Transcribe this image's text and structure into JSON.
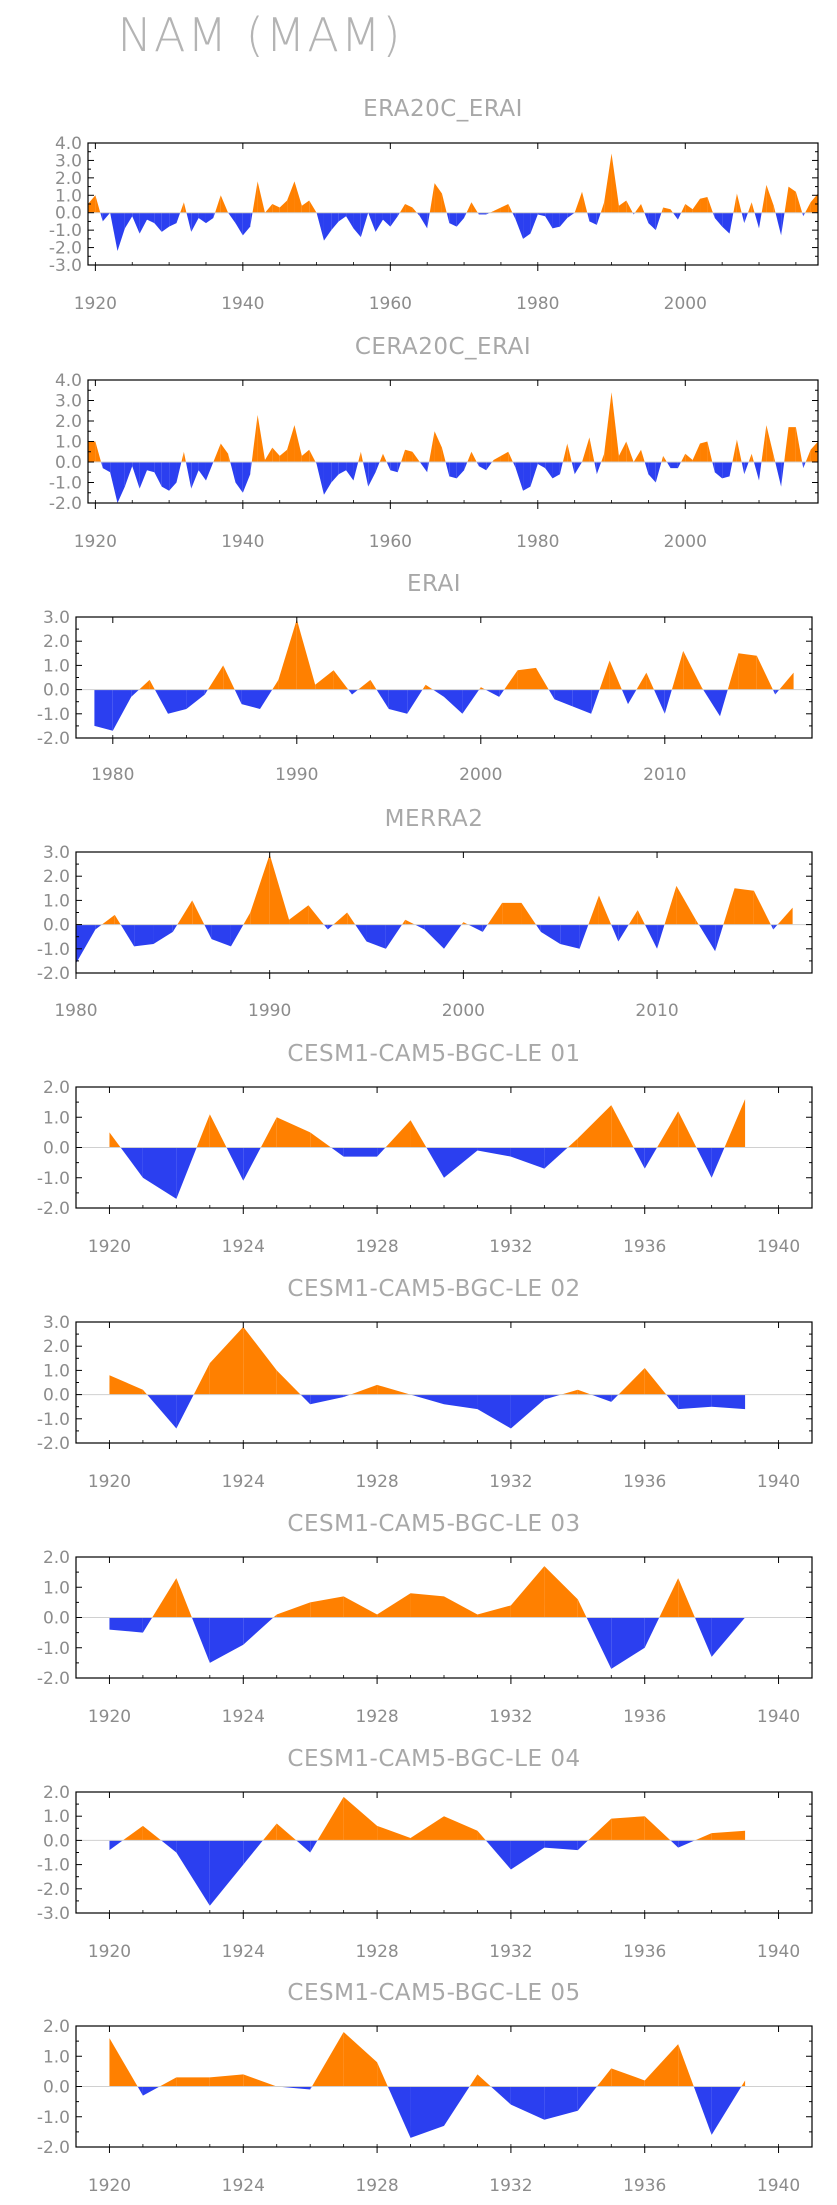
{
  "page_title": "NAM (MAM)",
  "colors": {
    "positive": "#ff8000",
    "negative": "#2b3ff0",
    "frame": "#000000",
    "text": "#a8a8a8"
  },
  "chart_data": [
    {
      "title": "ERA20C_ERAI",
      "type": "area",
      "xlim": [
        1919,
        2018
      ],
      "ylim": [
        -3.0,
        4.0
      ],
      "yticks": [
        4.0,
        3.0,
        2.0,
        1.0,
        0.0,
        -1.0,
        -2.0,
        -3.0
      ],
      "xticks": [
        1920,
        1940,
        1960,
        1980,
        2000
      ],
      "x": [
        1919,
        1920,
        1921,
        1922,
        1923,
        1924,
        1925,
        1926,
        1927,
        1928,
        1929,
        1930,
        1931,
        1932,
        1933,
        1934,
        1935,
        1936,
        1937,
        1938,
        1939,
        1940,
        1941,
        1942,
        1943,
        1944,
        1945,
        1946,
        1947,
        1948,
        1949,
        1950,
        1951,
        1952,
        1953,
        1954,
        1955,
        1956,
        1957,
        1958,
        1959,
        1960,
        1961,
        1962,
        1963,
        1964,
        1965,
        1966,
        1967,
        1968,
        1969,
        1970,
        1971,
        1972,
        1973,
        1974,
        1975,
        1976,
        1977,
        1978,
        1979,
        1980,
        1981,
        1982,
        1983,
        1984,
        1985,
        1986,
        1987,
        1988,
        1989,
        1990,
        1991,
        1992,
        1993,
        1994,
        1995,
        1996,
        1997,
        1998,
        1999,
        2000,
        2001,
        2002,
        2003,
        2004,
        2005,
        2006,
        2007,
        2008,
        2009,
        2010,
        2011,
        2012,
        2013,
        2014,
        2015,
        2016,
        2017,
        2018
      ],
      "values": [
        0.5,
        1.0,
        -0.5,
        0.0,
        -2.2,
        -0.9,
        -0.2,
        -1.2,
        -0.4,
        -0.6,
        -1.1,
        -0.8,
        -0.6,
        0.6,
        -1.1,
        -0.3,
        -0.6,
        -0.3,
        1.0,
        0.0,
        -0.6,
        -1.3,
        -0.8,
        1.8,
        0.0,
        0.5,
        0.3,
        0.7,
        1.8,
        0.4,
        0.7,
        0.0,
        -1.6,
        -1.0,
        -0.5,
        -0.2,
        -0.9,
        -1.4,
        0.0,
        -1.1,
        -0.4,
        -0.8,
        -0.2,
        0.5,
        0.3,
        -0.2,
        -0.9,
        1.7,
        1.1,
        -0.6,
        -0.8,
        -0.3,
        0.6,
        -0.1,
        -0.1,
        0.1,
        0.3,
        0.5,
        -0.4,
        -1.5,
        -1.2,
        -0.1,
        -0.2,
        -0.9,
        -0.8,
        -0.3,
        0.0,
        1.2,
        -0.5,
        -0.7,
        0.6,
        3.4,
        0.4,
        0.7,
        -0.1,
        0.5,
        -0.6,
        -1.0,
        0.3,
        0.2,
        -0.4,
        0.5,
        0.2,
        0.8,
        0.9,
        -0.3,
        -0.8,
        -1.2,
        1.1,
        -0.6,
        0.6,
        -0.9,
        1.6,
        0.4,
        -1.3,
        1.5,
        1.2,
        -0.2,
        0.6,
        1.1
      ]
    },
    {
      "title": "CERA20C_ERAI",
      "type": "area",
      "xlim": [
        1919,
        2018
      ],
      "ylim": [
        -2.0,
        4.0
      ],
      "yticks": [
        4.0,
        3.0,
        2.0,
        1.0,
        0.0,
        -1.0,
        -2.0
      ],
      "xticks": [
        1920,
        1940,
        1960,
        1980,
        2000
      ],
      "x": [
        1919,
        1920,
        1921,
        1922,
        1923,
        1924,
        1925,
        1926,
        1927,
        1928,
        1929,
        1930,
        1931,
        1932,
        1933,
        1934,
        1935,
        1936,
        1937,
        1938,
        1939,
        1940,
        1941,
        1942,
        1943,
        1944,
        1945,
        1946,
        1947,
        1948,
        1949,
        1950,
        1951,
        1952,
        1953,
        1954,
        1955,
        1956,
        1957,
        1958,
        1959,
        1960,
        1961,
        1962,
        1963,
        1964,
        1965,
        1966,
        1967,
        1968,
        1969,
        1970,
        1971,
        1972,
        1973,
        1974,
        1975,
        1976,
        1977,
        1978,
        1979,
        1980,
        1981,
        1982,
        1983,
        1984,
        1985,
        1986,
        1987,
        1988,
        1989,
        1990,
        1991,
        1992,
        1993,
        1994,
        1995,
        1996,
        1997,
        1998,
        1999,
        2000,
        2001,
        2002,
        2003,
        2004,
        2005,
        2006,
        2007,
        2008,
        2009,
        2010,
        2011,
        2012,
        2013,
        2014,
        2015,
        2016,
        2017,
        2018
      ],
      "values": [
        1.0,
        1.0,
        -0.3,
        -0.5,
        -2.0,
        -1.2,
        -0.2,
        -1.3,
        -0.4,
        -0.5,
        -1.2,
        -1.4,
        -1.0,
        0.5,
        -1.3,
        -0.4,
        -0.9,
        0.0,
        0.9,
        0.4,
        -1.0,
        -1.5,
        -0.6,
        2.3,
        0.1,
        0.7,
        0.3,
        0.6,
        1.8,
        0.3,
        0.6,
        -0.1,
        -1.6,
        -1.0,
        -0.6,
        -0.4,
        -0.9,
        0.5,
        -1.2,
        -0.5,
        0.4,
        -0.4,
        -0.5,
        0.6,
        0.5,
        0.0,
        -0.5,
        1.5,
        0.7,
        -0.7,
        -0.8,
        -0.4,
        0.5,
        -0.2,
        -0.4,
        0.1,
        0.3,
        0.5,
        -0.3,
        -1.4,
        -1.2,
        -0.1,
        -0.3,
        -0.8,
        -0.6,
        0.9,
        -0.6,
        0.0,
        1.2,
        -0.6,
        0.4,
        3.4,
        0.3,
        1.0,
        0.0,
        0.6,
        -0.6,
        -1.0,
        0.3,
        -0.3,
        -0.3,
        0.4,
        0.1,
        0.9,
        1.0,
        -0.5,
        -0.8,
        -0.7,
        1.1,
        -0.6,
        0.4,
        -0.9,
        1.8,
        0.3,
        -1.2,
        1.7,
        1.7,
        -0.3,
        0.6,
        1.0
      ]
    },
    {
      "title": "ERAI",
      "type": "area",
      "xlim": [
        1978,
        2018
      ],
      "ylim": [
        -2.0,
        3.0
      ],
      "yticks": [
        3.0,
        2.0,
        1.0,
        0.0,
        -1.0,
        -2.0
      ],
      "xticks": [
        1980,
        1990,
        2000,
        2010
      ],
      "x": [
        1979,
        1980,
        1981,
        1982,
        1983,
        1984,
        1985,
        1986,
        1987,
        1988,
        1989,
        1990,
        1991,
        1992,
        1993,
        1994,
        1995,
        1996,
        1997,
        1998,
        1999,
        2000,
        2001,
        2002,
        2003,
        2004,
        2005,
        2006,
        2007,
        2008,
        2009,
        2010,
        2011,
        2012,
        2013,
        2014,
        2015,
        2016,
        2017
      ],
      "values": [
        -1.5,
        -1.7,
        -0.3,
        0.4,
        -1.0,
        -0.8,
        -0.2,
        1.0,
        -0.6,
        -0.8,
        0.4,
        2.9,
        0.2,
        0.8,
        -0.2,
        0.4,
        -0.8,
        -1.0,
        0.2,
        -0.3,
        -1.0,
        0.1,
        -0.3,
        0.8,
        0.9,
        -0.4,
        -0.7,
        -1.0,
        1.2,
        -0.6,
        0.7,
        -1.0,
        1.6,
        0.1,
        -1.1,
        1.5,
        1.4,
        -0.2,
        0.7
      ]
    },
    {
      "title": "MERRA2",
      "type": "area",
      "xlim": [
        1980,
        2018
      ],
      "ylim": [
        -2.0,
        3.0
      ],
      "yticks": [
        3.0,
        2.0,
        1.0,
        0.0,
        -1.0,
        -2.0
      ],
      "xticks": [
        1980,
        1990,
        2000,
        2010
      ],
      "x": [
        1980,
        1981,
        1982,
        1983,
        1984,
        1985,
        1986,
        1987,
        1988,
        1989,
        1990,
        1991,
        1992,
        1993,
        1994,
        1995,
        1996,
        1997,
        1998,
        1999,
        2000,
        2001,
        2002,
        2003,
        2004,
        2005,
        2006,
        2007,
        2008,
        2009,
        2010,
        2011,
        2012,
        2013,
        2014,
        2015,
        2016,
        2017
      ],
      "values": [
        -1.6,
        -0.2,
        0.4,
        -0.9,
        -0.8,
        -0.3,
        1.0,
        -0.6,
        -0.9,
        0.5,
        2.9,
        0.2,
        0.8,
        -0.2,
        0.5,
        -0.7,
        -1.0,
        0.2,
        -0.2,
        -1.0,
        0.1,
        -0.3,
        0.9,
        0.9,
        -0.3,
        -0.8,
        -1.0,
        1.2,
        -0.7,
        0.6,
        -1.0,
        1.6,
        0.2,
        -1.1,
        1.5,
        1.4,
        -0.2,
        0.7
      ]
    },
    {
      "title": "CESM1-CAM5-BGC-LE 01",
      "type": "area",
      "xlim": [
        1919,
        1941
      ],
      "ylim": [
        -2.0,
        2.0
      ],
      "yticks": [
        2.0,
        1.0,
        0.0,
        -1.0,
        -2.0
      ],
      "xticks": [
        1920,
        1924,
        1928,
        1932,
        1936,
        1940
      ],
      "x": [
        1920,
        1921,
        1922,
        1923,
        1924,
        1925,
        1926,
        1927,
        1928,
        1929,
        1930,
        1931,
        1932,
        1933,
        1934,
        1935,
        1936,
        1937,
        1938,
        1939
      ],
      "values": [
        0.5,
        -1.0,
        -1.7,
        1.1,
        -1.1,
        1.0,
        0.5,
        -0.3,
        -0.3,
        0.9,
        -1.0,
        -0.1,
        -0.3,
        -0.7,
        0.3,
        1.4,
        -0.7,
        1.2,
        -1.0,
        1.6
      ]
    },
    {
      "title": "CESM1-CAM5-BGC-LE 02",
      "type": "area",
      "xlim": [
        1919,
        1941
      ],
      "ylim": [
        -2.0,
        3.0
      ],
      "yticks": [
        3.0,
        2.0,
        1.0,
        0.0,
        -1.0,
        -2.0
      ],
      "xticks": [
        1920,
        1924,
        1928,
        1932,
        1936,
        1940
      ],
      "x": [
        1920,
        1921,
        1922,
        1923,
        1924,
        1925,
        1926,
        1927,
        1928,
        1929,
        1930,
        1931,
        1932,
        1933,
        1934,
        1935,
        1936,
        1937,
        1938,
        1939
      ],
      "values": [
        0.8,
        0.2,
        -1.4,
        1.3,
        2.8,
        1.0,
        -0.4,
        -0.1,
        0.4,
        0.0,
        -0.4,
        -0.6,
        -1.4,
        -0.2,
        0.2,
        -0.3,
        1.1,
        -0.6,
        -0.5,
        -0.6
      ]
    },
    {
      "title": "CESM1-CAM5-BGC-LE 03",
      "type": "area",
      "xlim": [
        1919,
        1941
      ],
      "ylim": [
        -2.0,
        2.0
      ],
      "yticks": [
        2.0,
        1.0,
        0.0,
        -1.0,
        -2.0
      ],
      "xticks": [
        1920,
        1924,
        1928,
        1932,
        1936,
        1940
      ],
      "x": [
        1920,
        1921,
        1922,
        1923,
        1924,
        1925,
        1926,
        1927,
        1928,
        1929,
        1930,
        1931,
        1932,
        1933,
        1934,
        1935,
        1936,
        1937,
        1938,
        1939
      ],
      "values": [
        -0.4,
        -0.5,
        1.3,
        -1.5,
        -0.9,
        0.1,
        0.5,
        0.7,
        0.1,
        0.8,
        0.7,
        0.1,
        0.4,
        1.7,
        0.6,
        -1.7,
        -1.0,
        1.3,
        -1.3,
        0.0
      ]
    },
    {
      "title": "CESM1-CAM5-BGC-LE 04",
      "type": "area",
      "xlim": [
        1919,
        1941
      ],
      "ylim": [
        -3.0,
        2.0
      ],
      "yticks": [
        2.0,
        1.0,
        0.0,
        -1.0,
        -2.0,
        -3.0
      ],
      "xticks": [
        1920,
        1924,
        1928,
        1932,
        1936,
        1940
      ],
      "x": [
        1920,
        1921,
        1922,
        1923,
        1924,
        1925,
        1926,
        1927,
        1928,
        1929,
        1930,
        1931,
        1932,
        1933,
        1934,
        1935,
        1936,
        1937,
        1938,
        1939
      ],
      "values": [
        -0.4,
        0.6,
        -0.5,
        -2.7,
        -1.0,
        0.7,
        -0.5,
        1.8,
        0.6,
        0.1,
        1.0,
        0.4,
        -1.2,
        -0.3,
        -0.4,
        0.9,
        1.0,
        -0.3,
        0.3,
        0.4
      ]
    },
    {
      "title": "CESM1-CAM5-BGC-LE 05",
      "type": "area",
      "xlim": [
        1919,
        1941
      ],
      "ylim": [
        -2.0,
        2.0
      ],
      "yticks": [
        2.0,
        1.0,
        0.0,
        -1.0,
        -2.0
      ],
      "xticks": [
        1920,
        1924,
        1928,
        1932,
        1936,
        1940
      ],
      "x": [
        1920,
        1921,
        1922,
        1923,
        1924,
        1925,
        1926,
        1927,
        1928,
        1929,
        1930,
        1931,
        1932,
        1933,
        1934,
        1935,
        1936,
        1937,
        1938,
        1939
      ],
      "values": [
        1.6,
        -0.3,
        0.3,
        0.3,
        0.4,
        0.0,
        -0.1,
        1.8,
        0.8,
        -1.7,
        -1.3,
        0.4,
        -0.6,
        -1.1,
        -0.8,
        0.6,
        0.2,
        1.4,
        -1.6,
        0.2
      ]
    }
  ]
}
